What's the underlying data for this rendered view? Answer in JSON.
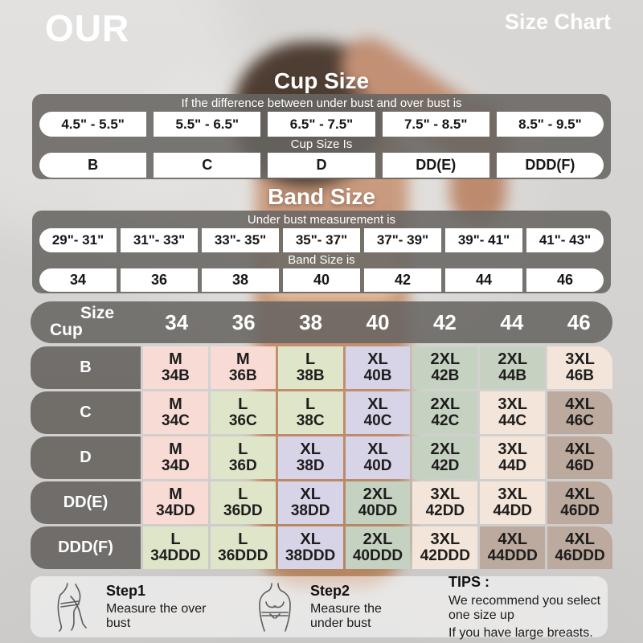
{
  "brand": "OUR",
  "page_title": "Size Chart",
  "accent_colors": {
    "panel_gray": "#686562",
    "pill_white": "#ffffff",
    "text_dark": "#1d1d1d",
    "text_white": "#ffffff"
  },
  "cup_section": {
    "title": "Cup Size",
    "subtitle": "If the  difference between under bust and over bust is",
    "ranges": [
      "4.5\" - 5.5\"",
      "5.5\" - 6.5\"",
      "6.5\" - 7.5\"",
      "7.5\" - 8.5\"",
      "8.5\" - 9.5\""
    ],
    "result_label": "Cup Size Is",
    "cups": [
      "B",
      "C",
      "D",
      "DD(E)",
      "DDD(F)"
    ]
  },
  "band_section": {
    "title": "Band Size",
    "subtitle": "Under bust measurement is",
    "ranges": [
      "29\"- 31\"",
      "31\"- 33\"",
      "33\"- 35\"",
      "35\"- 37\"",
      "37\"- 39\"",
      "39\"- 41\"",
      "41\"- 43\""
    ],
    "result_label": "Band Size is",
    "bands": [
      "34",
      "36",
      "38",
      "40",
      "42",
      "44",
      "46"
    ]
  },
  "matrix": {
    "corner_top_label": "Size",
    "corner_bottom_label": "Cup",
    "columns": [
      "34",
      "36",
      "38",
      "40",
      "42",
      "44",
      "46"
    ],
    "size_colors": {
      "M": "#f8dbd5",
      "L": "#dfe5c8",
      "XL": "#d8d4e8",
      "2XL": "#c5d1c1",
      "3XL": "#f3e5d9",
      "4XL": "#bdaa9e"
    },
    "rows": [
      {
        "cup": "B",
        "cells": [
          {
            "size": "M",
            "code": "34B"
          },
          {
            "size": "M",
            "code": "36B"
          },
          {
            "size": "L",
            "code": "38B"
          },
          {
            "size": "XL",
            "code": "40B"
          },
          {
            "size": "2XL",
            "code": "42B"
          },
          {
            "size": "2XL",
            "code": "44B"
          },
          {
            "size": "3XL",
            "code": "46B"
          }
        ]
      },
      {
        "cup": "C",
        "cells": [
          {
            "size": "M",
            "code": "34C"
          },
          {
            "size": "L",
            "code": "36C"
          },
          {
            "size": "L",
            "code": "38C"
          },
          {
            "size": "XL",
            "code": "40C"
          },
          {
            "size": "2XL",
            "code": "42C"
          },
          {
            "size": "3XL",
            "code": "44C"
          },
          {
            "size": "4XL",
            "code": "46C"
          }
        ]
      },
      {
        "cup": "D",
        "cells": [
          {
            "size": "M",
            "code": "34D"
          },
          {
            "size": "L",
            "code": "36D"
          },
          {
            "size": "XL",
            "code": "38D"
          },
          {
            "size": "XL",
            "code": "40D"
          },
          {
            "size": "2XL",
            "code": "42D"
          },
          {
            "size": "3XL",
            "code": "44D"
          },
          {
            "size": "4XL",
            "code": "46D"
          }
        ]
      },
      {
        "cup": "DD(E)",
        "cells": [
          {
            "size": "M",
            "code": "34DD"
          },
          {
            "size": "L",
            "code": "36DD"
          },
          {
            "size": "XL",
            "code": "38DD"
          },
          {
            "size": "2XL",
            "code": "40DD"
          },
          {
            "size": "3XL",
            "code": "42DD"
          },
          {
            "size": "3XL",
            "code": "44DD"
          },
          {
            "size": "4XL",
            "code": "46DD"
          }
        ]
      },
      {
        "cup": "DDD(F)",
        "cells": [
          {
            "size": "L",
            "code": "34DDD"
          },
          {
            "size": "L",
            "code": "36DDD"
          },
          {
            "size": "XL",
            "code": "38DDD"
          },
          {
            "size": "2XL",
            "code": "40DDD"
          },
          {
            "size": "3XL",
            "code": "42DDD"
          },
          {
            "size": "4XL",
            "code": "44DDD"
          },
          {
            "size": "4XL",
            "code": "46DDD"
          }
        ]
      }
    ]
  },
  "footer": {
    "steps": [
      {
        "label": "Step1",
        "text": "Measure the over bust",
        "icon": "over-bust-measure-icon"
      },
      {
        "label": "Step2",
        "text": "Measure the under bust",
        "icon": "under-bust-measure-icon"
      }
    ],
    "tips_label": "TIPS :",
    "tips_lines": [
      "We recommend you select one size up",
      "If you have large breasts."
    ]
  },
  "chart_data": [
    {
      "type": "table",
      "title": "Cup Size",
      "note": "If the difference between under bust and over bust is",
      "columns": [
        "4.5\" - 5.5\"",
        "5.5\" - 6.5\"",
        "6.5\" - 7.5\"",
        "7.5\" - 8.5\"",
        "8.5\" - 9.5\""
      ],
      "result_label": "Cup Size Is",
      "values": [
        "B",
        "C",
        "D",
        "DD(E)",
        "DDD(F)"
      ]
    },
    {
      "type": "table",
      "title": "Band Size",
      "note": "Under bust measurement is",
      "columns": [
        "29\"- 31\"",
        "31\"- 33\"",
        "33\"- 35\"",
        "35\"- 37\"",
        "37\"- 39\"",
        "39\"- 41\"",
        "41\"- 43\""
      ],
      "result_label": "Band Size is",
      "values": [
        "34",
        "36",
        "38",
        "40",
        "42",
        "44",
        "46"
      ]
    },
    {
      "type": "table",
      "title": "Size by Cup and Band",
      "columns": [
        "34",
        "36",
        "38",
        "40",
        "42",
        "44",
        "46"
      ],
      "row_labels": [
        "B",
        "C",
        "D",
        "DD(E)",
        "DDD(F)"
      ],
      "rows": [
        [
          "M 34B",
          "M 36B",
          "L 38B",
          "XL 40B",
          "2XL 42B",
          "2XL 44B",
          "3XL 46B"
        ],
        [
          "M 34C",
          "L 36C",
          "L 38C",
          "XL 40C",
          "2XL 42C",
          "3XL 44C",
          "4XL 46C"
        ],
        [
          "M 34D",
          "L 36D",
          "XL 38D",
          "XL 40D",
          "2XL 42D",
          "3XL 44D",
          "4XL 46D"
        ],
        [
          "M 34DD",
          "L 36DD",
          "XL 38DD",
          "2XL 40DD",
          "3XL 42DD",
          "3XL 44DD",
          "4XL 46DD"
        ],
        [
          "L 34DDD",
          "L 36DDD",
          "XL 38DDD",
          "2XL 40DDD",
          "3XL 42DDD",
          "4XL 44DDD",
          "4XL 46DDD"
        ]
      ]
    }
  ]
}
